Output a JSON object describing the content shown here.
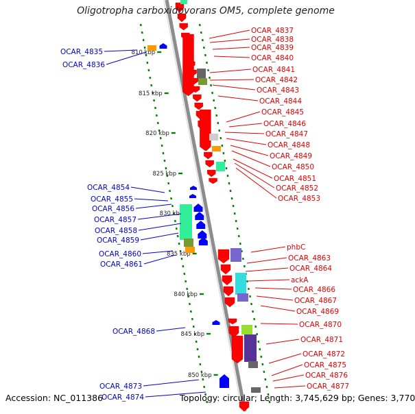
{
  "title": "Oligotropha carboxidovorans OM5, complete genome",
  "footer": {
    "accession": "Accession: NC_011386",
    "stats": "Topology: circular; Length: 3,745,629 bp; Genes: 3,770"
  },
  "colors": {
    "forward_label": "#e00000",
    "reverse_label": "#0000cc",
    "forward_gene": "#ff0000",
    "reverse_gene": "#0000ff",
    "backbone": "#8c8c8c",
    "tick": "#008000",
    "cds_green": "#33ee99",
    "cds_gray": "#666666",
    "cds_olive": "#779933",
    "cds_orange": "#ff9900",
    "cds_light_gray": "#cccccc",
    "cds_cyan": "#33dddd",
    "cds_violet": "#7766cc",
    "cds_purple": "#553399",
    "cds_lime": "#99dd33"
  },
  "scale_ticks": [
    "810 kbp",
    "815 kbp",
    "820 kbp",
    "825 kbp",
    "830 kbp",
    "835 kbp",
    "840 kbp",
    "845 kbp",
    "850 kbp"
  ],
  "forward_labels": [
    "OCAR_4837",
    "OCAR_4838",
    "OCAR_4839",
    "OCAR_4840",
    "OCAR_4841",
    "OCAR_4842",
    "OCAR_4843",
    "OCAR_4844",
    "OCAR_4845",
    "OCAR_4846",
    "OCAR_4847",
    "OCAR_4848",
    "OCAR_4849",
    "OCAR_4850",
    "OCAR_4851",
    "OCAR_4852",
    "OCAR_4853",
    "phbC",
    "OCAR_4863",
    "OCAR_4864",
    "ackA",
    "OCAR_4866",
    "OCAR_4867",
    "OCAR_4869",
    "OCAR_4870",
    "OCAR_4871",
    "OCAR_4872",
    "OCAR_4875",
    "OCAR_4876",
    "OCAR_4877"
  ],
  "reverse_labels": [
    "OCAR_4835",
    "OCAR_4836",
    "OCAR_4854",
    "OCAR_4855",
    "OCAR_4856",
    "OCAR_4857",
    "OCAR_4858",
    "OCAR_4859",
    "OCAR_4860",
    "OCAR_4861",
    "OCAR_4868",
    "OCAR_4873",
    "OCAR_4874"
  ]
}
